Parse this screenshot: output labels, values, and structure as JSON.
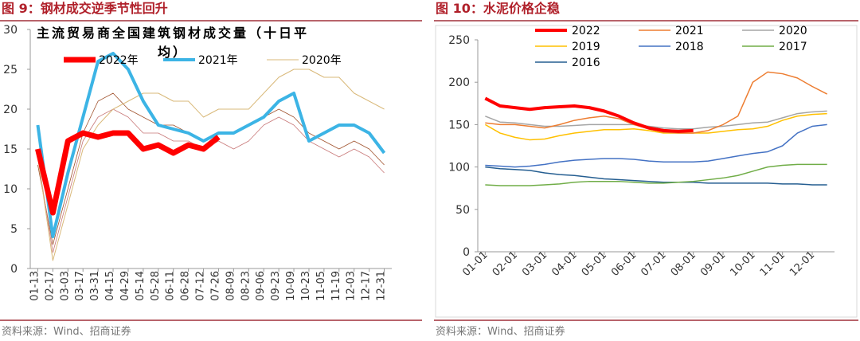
{
  "chart_data": [
    {
      "type": "line",
      "title": "图 9：钢材成交逆季节性回升",
      "annotation": "主流贸易商全国建筑钢材成交量（十日平均）",
      "source": "资料来源：Wind、招商证券",
      "categories": [
        "01-13",
        "02-17",
        "03-03",
        "03-17",
        "03-31",
        "04-15",
        "04-29",
        "05-14",
        "05-28",
        "06-11",
        "06-28",
        "07-12",
        "07-26",
        "08-09",
        "08-23",
        "09-06",
        "09-23",
        "10-09",
        "10-23",
        "11-05",
        "11-19",
        "12-03",
        "12-17",
        "12-31"
      ],
      "ylim": [
        0,
        30
      ],
      "yticks": [
        0,
        5,
        10,
        15,
        20,
        25,
        30
      ],
      "series": [
        {
          "color": "#a0522d",
          "linewidth": 0.8,
          "values": [
            13,
            3,
            10,
            17,
            21,
            22,
            20,
            19,
            18,
            18,
            17,
            16,
            17,
            17,
            18,
            19,
            20,
            19,
            17,
            16,
            15,
            16,
            15,
            13
          ]
        },
        {
          "color": "#c87878",
          "linewidth": 0.8,
          "values": [
            14,
            2,
            9,
            16,
            19,
            20,
            19,
            17,
            17,
            16,
            16,
            15,
            16,
            15,
            16,
            18,
            19,
            18,
            16,
            15,
            14,
            15,
            14,
            12
          ]
        },
        {
          "name": "2020年",
          "color": "#d9b97a",
          "linewidth": 1,
          "values": [
            14,
            1,
            8,
            15,
            18,
            20,
            21,
            22,
            22,
            21,
            21,
            19,
            20,
            20,
            20,
            22,
            24,
            25,
            25,
            24,
            24,
            22,
            21,
            20
          ]
        },
        {
          "name": "2021年",
          "color": "#3cb4e5",
          "linewidth": 4,
          "values": [
            18,
            4,
            12,
            19,
            26,
            27,
            25,
            21,
            18,
            17.5,
            17,
            16,
            17,
            17,
            18,
            19,
            21,
            22,
            16,
            17,
            18,
            18,
            17,
            14.5
          ]
        },
        {
          "name": "2022年",
          "color": "#ff0000",
          "linewidth": 7,
          "values": [
            15,
            7,
            16,
            17,
            16.5,
            17,
            17,
            15,
            15.5,
            14.5,
            15.5,
            15,
            16.5,
            null,
            null,
            null,
            null,
            null,
            null,
            null,
            null,
            null,
            null,
            null
          ]
        }
      ]
    },
    {
      "type": "line",
      "title": "图 10：水泥价格企稳",
      "source": "资料来源：Wind、招商证券",
      "categories": [
        "01-01",
        null,
        "02-01",
        null,
        "03-01",
        null,
        "04-01",
        null,
        "05-01",
        null,
        "06-01",
        null,
        "07-01",
        null,
        "08-01",
        null,
        "09-01",
        null,
        "10-01",
        null,
        "11-01",
        null,
        "12-01",
        null
      ],
      "ylim": [
        0,
        250
      ],
      "yticks": [
        0,
        50,
        100,
        150,
        200,
        250
      ],
      "series": [
        {
          "name": "2016",
          "color": "#255e91",
          "linewidth": 1.5,
          "values": [
            100,
            98,
            97,
            96,
            93,
            91,
            90,
            88,
            86,
            85,
            84,
            83,
            82,
            82,
            82,
            81,
            81,
            81,
            81,
            81,
            80,
            80,
            79,
            79
          ]
        },
        {
          "name": "2017",
          "color": "#70ad47",
          "linewidth": 1.5,
          "values": [
            79,
            78,
            78,
            78,
            79,
            80,
            82,
            83,
            83,
            83,
            82,
            81,
            81,
            82,
            83,
            85,
            87,
            90,
            95,
            100,
            102,
            103,
            103,
            103
          ]
        },
        {
          "name": "2018",
          "color": "#4472c4",
          "linewidth": 1.5,
          "values": [
            102,
            101,
            100,
            101,
            103,
            106,
            108,
            109,
            110,
            110,
            109,
            107,
            106,
            106,
            106,
            107,
            110,
            113,
            116,
            118,
            125,
            140,
            148,
            150
          ]
        },
        {
          "name": "2019",
          "color": "#ffc000",
          "linewidth": 1.5,
          "values": [
            150,
            140,
            135,
            132,
            133,
            137,
            140,
            142,
            144,
            144,
            145,
            143,
            140,
            140,
            140,
            140,
            142,
            144,
            145,
            148,
            155,
            160,
            162,
            163
          ]
        },
        {
          "name": "2020",
          "color": "#a5a5a5",
          "linewidth": 1.5,
          "values": [
            160,
            153,
            152,
            150,
            148,
            148,
            149,
            150,
            150,
            150,
            150,
            148,
            146,
            145,
            145,
            147,
            148,
            150,
            152,
            153,
            158,
            163,
            165,
            166
          ]
        },
        {
          "name": "2021",
          "color": "#ed7d31",
          "linewidth": 1.5,
          "values": [
            152,
            150,
            150,
            148,
            146,
            150,
            155,
            158,
            160,
            157,
            150,
            145,
            141,
            140,
            140,
            143,
            150,
            160,
            200,
            212,
            210,
            205,
            195,
            186
          ]
        },
        {
          "name": "2022",
          "color": "#ff0000",
          "linewidth": 4,
          "values": [
            181,
            172,
            170,
            168,
            170,
            171,
            172,
            170,
            166,
            160,
            152,
            146,
            143,
            142,
            143,
            null,
            null,
            null,
            null,
            null,
            null,
            null,
            null,
            null
          ]
        }
      ]
    }
  ]
}
